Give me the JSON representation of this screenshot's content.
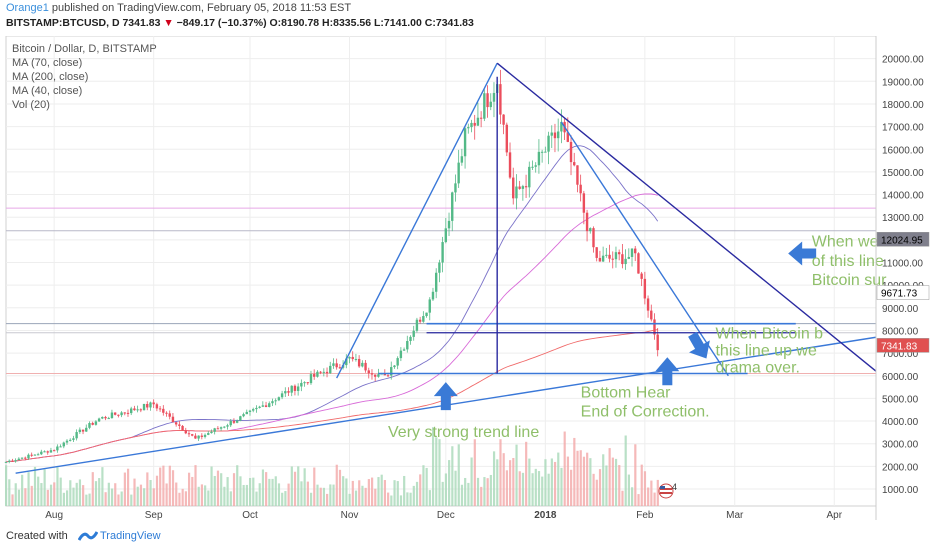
{
  "header": {
    "author": "Orange1",
    "published": " published on TradingView.com, February 05, 2018 11:53 EST",
    "quote": "BITSTAMP:BTCUSD, D  7341.83",
    "change": "−849.17 (−10.37%)",
    "ohlc": " O:8190.78  H:8335.56  L:7141.00  C:7341.83"
  },
  "footer": {
    "created": "Created with",
    "brand": "TradingView"
  },
  "legend": {
    "title": "Bitcoin / Dollar, D, BITSTAMP",
    "items": [
      "MA (70, close)",
      "MA (200, close)",
      "MA (40, close)",
      "Vol (20)"
    ]
  },
  "price_labels": [
    {
      "value": 12024.95,
      "text": "12024.95",
      "color": "#ffffff",
      "bg": "#7f7f8c",
      "fg": "#000000"
    },
    {
      "value": 9671.73,
      "text": "9671.73",
      "color": "#ffffff",
      "bg": "#ffffff",
      "fg": "#000000"
    },
    {
      "value": 7341.83,
      "text": "7341.83",
      "color": "#ffffff",
      "bg": "#e05050",
      "fg": "#ffffff"
    }
  ],
  "annotations": [
    {
      "text": "When we b",
      "x": "2018-03-25",
      "y": 11700
    },
    {
      "text": "of this line",
      "x": "2018-03-25",
      "y": 10850
    },
    {
      "text": "Bitcoin sur",
      "x": "2018-03-25",
      "y": 10000
    },
    {
      "text": "When Bitcoin b",
      "x": "2018-02-23",
      "y": 7650
    },
    {
      "text": "this line up we",
      "x": "2018-02-23",
      "y": 6900
    },
    {
      "text": "drama over.",
      "x": "2018-02-23",
      "y": 6150
    },
    {
      "text": "Bottom Hear",
      "x": "2018-01-12",
      "y": 5050
    },
    {
      "text": "End of Correction.",
      "x": "2018-01-12",
      "y": 4200
    },
    {
      "text": "Very strong trend line",
      "x": "2017-11-13",
      "y": 3300
    }
  ],
  "chart_data": {
    "type": "candlestick",
    "title": "Bitcoin / Dollar, D, BITSTAMP",
    "symbol": "BITSTAMP:BTCUSD",
    "x_ticks": [
      "Aug",
      "Sep",
      "Oct",
      "Nov",
      "Dec",
      "2018",
      "Feb",
      "Mar",
      "Apr"
    ],
    "x_tick_dates": [
      "2017-08-01",
      "2017-09-01",
      "2017-10-01",
      "2017-11-01",
      "2017-12-01",
      "2018-01-01",
      "2018-02-01",
      "2018-03-01",
      "2018-04-01"
    ],
    "xlim": [
      "2017-07-17",
      "2018-04-14"
    ],
    "y_ticks": [
      1000,
      2000,
      3000,
      4000,
      5000,
      6000,
      7000,
      8000,
      9000,
      10000,
      11000,
      12000,
      13000,
      14000,
      15000,
      16000,
      17000,
      18000,
      19000,
      20000
    ],
    "y_tick_labels": [
      "1000.00",
      "2000.00",
      "3000.00",
      "4000.00",
      "5000.00",
      "6000.00",
      "7000.00",
      "8000.00",
      "9000.00",
      "10000.00",
      "11000.00",
      "12000.00",
      "13000.00",
      "14000.00",
      "15000.00",
      "16000.00",
      "17000.00",
      "18000.00",
      "19000.00",
      "20000.00"
    ],
    "ylim": [
      250,
      21000
    ],
    "grid": true,
    "last_close": 7341.83,
    "ohlc_key_points": [
      {
        "date": "2017-07-17",
        "close": 2200
      },
      {
        "date": "2017-08-01",
        "close": 2750
      },
      {
        "date": "2017-08-15",
        "close": 4100
      },
      {
        "date": "2017-09-01",
        "close": 4750
      },
      {
        "date": "2017-09-14",
        "close": 3200
      },
      {
        "date": "2017-10-01",
        "close": 4350
      },
      {
        "date": "2017-10-20",
        "close": 5900
      },
      {
        "date": "2017-11-01",
        "close": 6750
      },
      {
        "date": "2017-11-12",
        "close": 5900
      },
      {
        "date": "2017-11-26",
        "close": 9300
      },
      {
        "date": "2017-12-07",
        "close": 16500
      },
      {
        "date": "2017-12-17",
        "close": 19100
      },
      {
        "date": "2017-12-22",
        "close": 13800
      },
      {
        "date": "2018-01-06",
        "close": 17000
      },
      {
        "date": "2018-01-17",
        "close": 11100
      },
      {
        "date": "2018-01-29",
        "close": 11300
      },
      {
        "date": "2018-02-05",
        "close": 7341.83
      }
    ],
    "horizontal_levels": [
      13400,
      12400,
      8300,
      7900,
      6100
    ],
    "trend_lines": [
      {
        "name": "support",
        "from": {
          "date": "2017-07-20",
          "price": 1700
        },
        "to": {
          "date": "2018-04-14",
          "price": 7700
        }
      },
      {
        "name": "triangle-left",
        "from": {
          "date": "2017-10-28",
          "price": 5900
        },
        "to": {
          "date": "2017-12-17",
          "price": 19800
        }
      },
      {
        "name": "resistance",
        "from": {
          "date": "2017-12-17",
          "price": 19800
        },
        "to": {
          "date": "2018-04-14",
          "price": 6200
        }
      },
      {
        "name": "inner-falling",
        "from": {
          "date": "2018-01-06",
          "price": 17200
        },
        "to": {
          "date": "2018-02-27",
          "price": 6000
        }
      }
    ]
  }
}
